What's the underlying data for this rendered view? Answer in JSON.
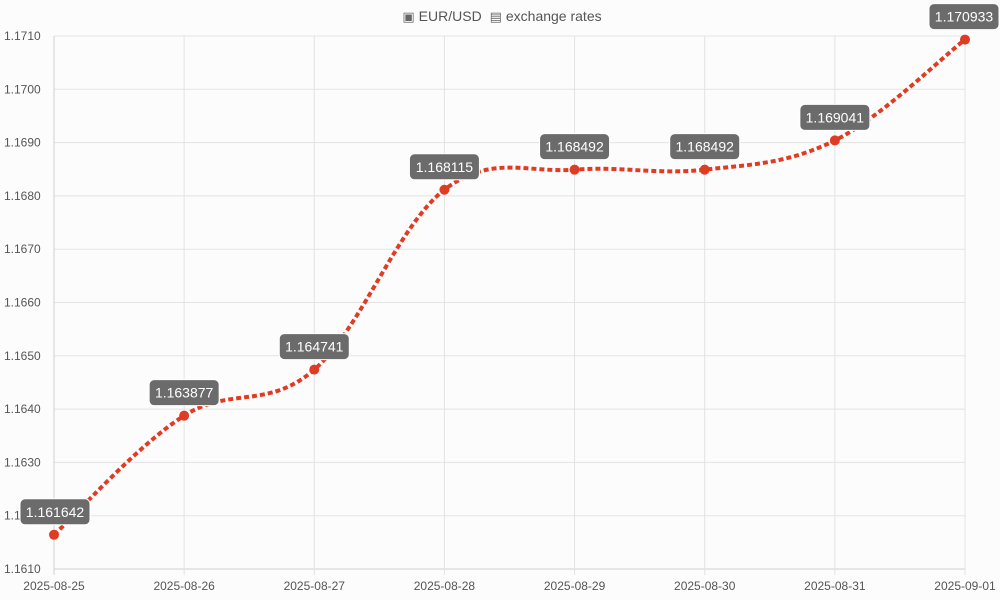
{
  "chart_data": {
    "type": "line",
    "title": "EUR/USD exchange rates",
    "title_parts": {
      "flag1": "🇪🇺",
      "pair": "EUR/USD",
      "flag2": "🇺🇸",
      "suffix": "exchange rates"
    },
    "x": [
      "2025-08-25",
      "2025-08-26",
      "2025-08-27",
      "2025-08-28",
      "2025-08-29",
      "2025-08-30",
      "2025-08-31",
      "2025-09-01"
    ],
    "series": [
      {
        "values": [
          1.161642,
          1.163877,
          1.164741,
          1.168115,
          1.168492,
          1.168492,
          1.169041,
          1.170933
        ],
        "color": "#e03c24"
      }
    ],
    "data_labels": [
      "1.161642",
      "1.163877",
      "1.164741",
      "1.168115",
      "1.168492",
      "1.168492",
      "1.169041",
      "1.170933"
    ],
    "y_ticks": [
      "1.1610",
      "1.1620",
      "1.1630",
      "1.1640",
      "1.1650",
      "1.1660",
      "1.1670",
      "1.1680",
      "1.1690",
      "1.1700",
      "1.1710"
    ],
    "ylim": [
      1.161,
      1.171
    ],
    "grid": true,
    "xlabel": "",
    "ylabel": ""
  }
}
